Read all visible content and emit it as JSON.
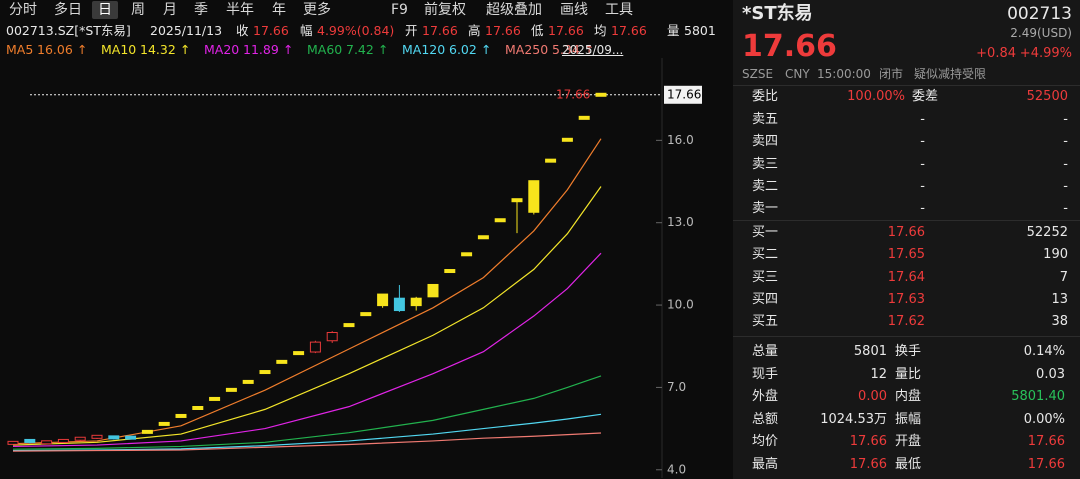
{
  "toolbar": {
    "tabs": [
      "分时",
      "多日",
      "日",
      "周",
      "月",
      "季",
      "半年",
      "年",
      "更多"
    ],
    "active_tab": 2,
    "tools": [
      "F9",
      "前复权",
      "超级叠加",
      "画线",
      "工具"
    ]
  },
  "info_bar": {
    "symbol": "002713.SZ[*ST东易]",
    "date": "2025/11/13",
    "fields": [
      {
        "label": "收",
        "value": "17.66",
        "tone": "up"
      },
      {
        "label": "幅",
        "value": "4.99%(0.84)",
        "tone": "up"
      },
      {
        "label": "开",
        "value": "17.66",
        "tone": "up"
      },
      {
        "label": "高",
        "value": "17.66",
        "tone": "up"
      },
      {
        "label": "低",
        "value": "17.66",
        "tone": "up"
      },
      {
        "label": "均",
        "value": "17.66",
        "tone": "up"
      },
      {
        "label": "量",
        "value": "5801",
        "tone": "flat"
      }
    ]
  },
  "chart_data": {
    "type": "candlestick",
    "ylim": [
      3.7,
      19.0
    ],
    "yticks": [
      {
        "value": 4,
        "label": "4.0"
      },
      {
        "value": 7,
        "label": "7.0"
      },
      {
        "value": 10,
        "label": "10.0"
      },
      {
        "value": 13,
        "label": "13.0"
      },
      {
        "value": 16,
        "label": "16.0"
      }
    ],
    "open": [
      4.95,
      5.05,
      4.96,
      5.0,
      5.08,
      5.15,
      5.18,
      5.17,
      5.38,
      5.67,
      5.96,
      6.25,
      6.58,
      6.91,
      7.2,
      7.56,
      7.93,
      8.25,
      8.29,
      8.7,
      9.27,
      9.67,
      9.98,
      10.25,
      9.98,
      10.3,
      11.24,
      11.85,
      12.47,
      13.09,
      13.82,
      13.38,
      15.26,
      16.02,
      16.82,
      17.66
    ],
    "high": [
      5.02,
      5.08,
      5.02,
      5.07,
      5.18,
      5.22,
      5.2,
      5.19,
      5.38,
      5.67,
      5.96,
      6.25,
      6.58,
      6.91,
      7.2,
      7.56,
      7.93,
      8.25,
      8.7,
      9.05,
      9.27,
      9.67,
      10.4,
      10.73,
      10.3,
      10.75,
      11.24,
      11.85,
      12.47,
      13.09,
      13.82,
      14.53,
      15.26,
      16.02,
      16.82,
      17.66
    ],
    "low": [
      4.92,
      4.96,
      4.94,
      4.98,
      5.05,
      5.12,
      5.1,
      5.12,
      5.38,
      5.67,
      5.96,
      6.25,
      6.58,
      6.91,
      7.2,
      7.56,
      7.93,
      8.25,
      8.25,
      8.62,
      9.27,
      9.67,
      9.9,
      9.75,
      9.8,
      10.3,
      11.24,
      11.85,
      12.47,
      13.09,
      12.62,
      13.3,
      15.26,
      16.02,
      16.82,
      17.66
    ],
    "close": [
      4.98,
      4.98,
      5.0,
      5.05,
      5.13,
      5.2,
      5.13,
      5.14,
      5.38,
      5.67,
      5.96,
      6.25,
      6.58,
      6.91,
      7.2,
      7.56,
      7.93,
      8.25,
      8.65,
      9.0,
      9.27,
      9.67,
      10.4,
      9.8,
      10.25,
      10.75,
      11.24,
      11.85,
      12.47,
      13.09,
      13.82,
      14.53,
      15.26,
      16.02,
      16.82,
      17.66
    ],
    "limit_up": [
      8,
      9,
      10,
      11,
      12,
      13,
      14,
      15,
      16,
      17,
      20,
      21,
      22,
      24,
      25,
      26,
      27,
      28,
      29,
      30,
      31,
      32,
      33,
      34,
      35
    ],
    "up_color": "#e83a3a",
    "down_color": "#43c6e0",
    "limit_up_color": "#f7e41c",
    "last_price": 17.66,
    "range_label": "2025/09...",
    "legend_arrow": "↑",
    "series": [
      {
        "name": "MA5",
        "color": "#ef7d2c",
        "x": [
          0,
          5,
          10,
          15,
          20,
          25,
          28,
          31,
          33,
          35
        ],
        "values": [
          4.95,
          5.05,
          5.6,
          6.9,
          8.4,
          9.9,
          11.0,
          12.7,
          14.2,
          16.06
        ]
      },
      {
        "name": "MA10",
        "color": "#f3e52a",
        "x": [
          0,
          5,
          10,
          15,
          20,
          25,
          28,
          31,
          33,
          35
        ],
        "values": [
          4.9,
          5.0,
          5.3,
          6.2,
          7.5,
          8.9,
          9.9,
          11.3,
          12.6,
          14.32
        ]
      },
      {
        "name": "MA20",
        "color": "#e024e6",
        "x": [
          0,
          5,
          10,
          15,
          20,
          25,
          28,
          31,
          33,
          35
        ],
        "values": [
          4.85,
          4.9,
          5.05,
          5.5,
          6.3,
          7.5,
          8.3,
          9.6,
          10.6,
          11.89
        ]
      },
      {
        "name": "MA60",
        "color": "#22b24e",
        "x": [
          0,
          5,
          10,
          15,
          20,
          25,
          28,
          31,
          33,
          35
        ],
        "values": [
          4.75,
          4.78,
          4.85,
          5.0,
          5.35,
          5.8,
          6.2,
          6.6,
          7.0,
          7.42
        ]
      },
      {
        "name": "MA120",
        "color": "#52d8f2",
        "x": [
          0,
          5,
          10,
          15,
          20,
          25,
          28,
          31,
          33,
          35
        ],
        "values": [
          4.7,
          4.72,
          4.76,
          4.88,
          5.05,
          5.3,
          5.5,
          5.7,
          5.85,
          6.02
        ]
      },
      {
        "name": "MA250",
        "color": "#f07a72",
        "x": [
          0,
          5,
          10,
          15,
          20,
          25,
          28,
          31,
          33,
          35
        ],
        "values": [
          4.68,
          4.7,
          4.72,
          4.82,
          4.92,
          5.05,
          5.15,
          5.22,
          5.28,
          5.34
        ]
      }
    ]
  },
  "quote": {
    "name": "*ST东易",
    "code": "002713",
    "price": "17.66",
    "usd": "2.49(USD)",
    "change": "+0.84",
    "change_pct": "+4.99%",
    "status": [
      "SZSE",
      "CNY",
      "15:00:00",
      "闭市",
      "疑似减持受限"
    ],
    "ratio": {
      "label": "委比",
      "value": "100.00%",
      "diff_label": "委差",
      "diff": "52500"
    },
    "asks": [
      [
        "卖五",
        "-",
        "-"
      ],
      [
        "卖四",
        "-",
        "-"
      ],
      [
        "卖三",
        "-",
        "-"
      ],
      [
        "卖二",
        "-",
        "-"
      ],
      [
        "卖一",
        "-",
        "-"
      ]
    ],
    "bids": [
      [
        "买一",
        "17.66",
        "52252"
      ],
      [
        "买二",
        "17.65",
        "190"
      ],
      [
        "买三",
        "17.64",
        "7"
      ],
      [
        "买四",
        "17.63",
        "13"
      ],
      [
        "买五",
        "17.62",
        "38"
      ]
    ],
    "stats": [
      [
        {
          "label": "总量",
          "value": "5801",
          "tone": "flat"
        },
        {
          "label": "换手",
          "value": "0.14%",
          "tone": "flat"
        }
      ],
      [
        {
          "label": "现手",
          "value": "12",
          "tone": "flat"
        },
        {
          "label": "量比",
          "value": "0.03",
          "tone": "flat"
        }
      ],
      [
        {
          "label": "外盘",
          "value": "0.00",
          "tone": "up"
        },
        {
          "label": "内盘",
          "value": "5801.40",
          "tone": "down"
        }
      ],
      [
        {
          "label": "总额",
          "value": "1024.53万",
          "tone": "flat"
        },
        {
          "label": "振幅",
          "value": "0.00%",
          "tone": "flat"
        }
      ],
      [
        {
          "label": "均价",
          "value": "17.66",
          "tone": "up"
        },
        {
          "label": "开盘",
          "value": "17.66",
          "tone": "up"
        }
      ],
      [
        {
          "label": "最高",
          "value": "17.66",
          "tone": "up"
        },
        {
          "label": "最低",
          "value": "17.66",
          "tone": "up"
        }
      ]
    ]
  }
}
